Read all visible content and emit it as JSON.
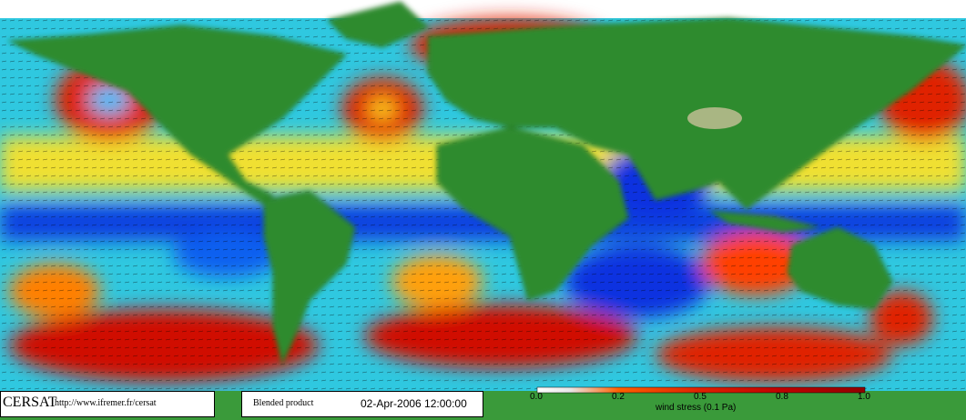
{
  "footer": {
    "brand": "CERSAT",
    "url": "http://www.ifremer.fr/cersat",
    "product": "Blended product",
    "date": "02-Apr-2006 12:00:00"
  },
  "colorbar": {
    "tick_labels": [
      "0.0",
      "0.2",
      "0.5",
      "0.8",
      "1.0"
    ],
    "label": "wind stress (0.1 Pa)"
  }
}
